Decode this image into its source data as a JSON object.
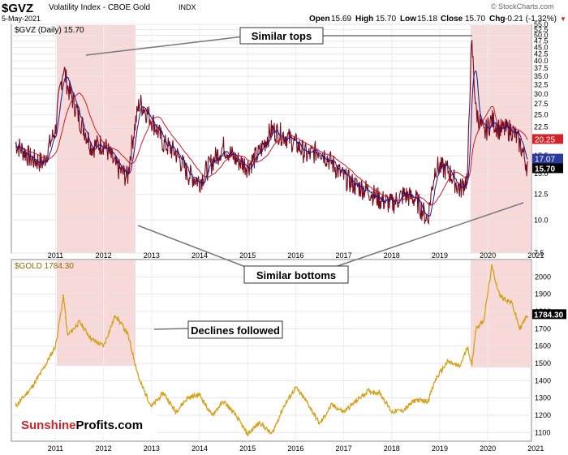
{
  "header": {
    "symbol": "$GVZ",
    "name": "Volatility Index - CBOE Gold",
    "exchange": "INDX",
    "date": "5-May-2021",
    "watermark": "© StockCharts.com",
    "open_label": "Open",
    "open": "15.69",
    "high_label": "High",
    "high": "15.70",
    "low_label": "Low",
    "low": "15.18",
    "close_label": "Close",
    "close": "15.70",
    "chg_label": "Chg",
    "chg": "-0.21 (-1.32%)",
    "chg_arrow": "▼"
  },
  "gvz_panel": {
    "legend": "$GVZ (Daily) 15.70",
    "price_badge": "15.70",
    "ma_badge_1": "20.25",
    "ma_badge_2": "17.07",
    "y_ticks": [
      "55.0",
      "52.5",
      "50.0",
      "47.5",
      "45.0",
      "42.5",
      "40.0",
      "37.5",
      "35.0",
      "32.5",
      "30.0",
      "27.5",
      "25.0",
      "22.5",
      "20.0",
      "17.5",
      "15.0",
      "12.5",
      "10.0",
      "7.5"
    ]
  },
  "gold_panel": {
    "legend": "$GOLD 1784.30",
    "price_badge": "1784.30",
    "y_ticks": [
      "2000",
      "1900",
      "1800",
      "1700",
      "1600",
      "1500",
      "1400",
      "1300",
      "1200",
      "1100"
    ]
  },
  "x_ticks": [
    "2011",
    "2012",
    "2013",
    "2014",
    "2015",
    "2016",
    "2017",
    "2018",
    "2019",
    "2020",
    "2021"
  ],
  "annotations": {
    "similar_tops": "Similar tops",
    "similar_bottoms": "Similar bottoms",
    "declines_followed": "Declines followed"
  },
  "brand": {
    "part1": "Sunshine",
    "part2": "Profits.com"
  },
  "colors": {
    "gvz_bars": "#7a0a1c",
    "ma_short": "#1a1a8c",
    "ma_long": "#cc1a2a",
    "gold": "#d4a017",
    "highlight": "#f4cccc",
    "badge_dark": "#000000",
    "badge_red": "#d0242a",
    "badge_blue": "#2a3a9c",
    "brand_red": "#d0242a"
  },
  "chart_data": [
    {
      "type": "line",
      "title": "$GVZ (Daily)",
      "xlabel": "",
      "ylabel": "",
      "y_scale": "log",
      "ylim": [
        7.5,
        55.0
      ],
      "x": [
        "2010-09",
        "2011-01",
        "2011-04",
        "2011-07",
        "2011-09",
        "2011-10",
        "2012-01",
        "2012-04",
        "2012-07",
        "2012-10",
        "2013-01",
        "2013-04",
        "2013-07",
        "2013-10",
        "2014-01",
        "2014-04",
        "2014-07",
        "2014-10",
        "2015-01",
        "2015-04",
        "2015-07",
        "2015-10",
        "2016-01",
        "2016-04",
        "2016-07",
        "2016-10",
        "2017-01",
        "2017-04",
        "2017-07",
        "2017-10",
        "2018-01",
        "2018-04",
        "2018-07",
        "2018-10",
        "2019-01",
        "2019-04",
        "2019-06",
        "2019-09",
        "2019-12",
        "2020-02",
        "2020-03",
        "2020-04",
        "2020-06",
        "2020-08",
        "2020-10",
        "2021-01",
        "2021-03",
        "2021-05"
      ],
      "series": [
        {
          "name": "$GVZ",
          "values": [
            19.5,
            17.0,
            16.5,
            22.0,
            38.0,
            32.0,
            24.0,
            19.0,
            19.5,
            16.0,
            14.5,
            28.0,
            24.0,
            19.5,
            18.0,
            15.0,
            14.0,
            16.5,
            19.0,
            17.0,
            16.0,
            18.0,
            22.0,
            21.0,
            19.5,
            17.5,
            18.5,
            16.5,
            14.5,
            13.5,
            13.0,
            12.0,
            11.5,
            12.5,
            12.0,
            10.0,
            16.0,
            15.5,
            13.0,
            14.5,
            46.0,
            26.0,
            21.0,
            24.0,
            22.0,
            22.0,
            19.5,
            15.7
          ]
        }
      ]
    },
    {
      "type": "line",
      "title": "$GOLD",
      "xlabel": "",
      "ylabel": "",
      "ylim": [
        1050,
        2100
      ],
      "x": [
        "2010-09",
        "2011-01",
        "2011-04",
        "2011-07",
        "2011-09",
        "2011-10",
        "2012-01",
        "2012-04",
        "2012-07",
        "2012-10",
        "2013-01",
        "2013-04",
        "2013-07",
        "2013-10",
        "2014-01",
        "2014-04",
        "2014-07",
        "2014-10",
        "2015-01",
        "2015-04",
        "2015-07",
        "2015-10",
        "2016-01",
        "2016-04",
        "2016-07",
        "2016-10",
        "2017-01",
        "2017-04",
        "2017-07",
        "2017-10",
        "2018-01",
        "2018-04",
        "2018-07",
        "2018-10",
        "2019-01",
        "2019-04",
        "2019-06",
        "2019-09",
        "2019-12",
        "2020-02",
        "2020-03",
        "2020-04",
        "2020-06",
        "2020-08",
        "2020-10",
        "2021-01",
        "2021-03",
        "2021-05"
      ],
      "series": [
        {
          "name": "$GOLD",
          "values": [
            1250,
            1360,
            1470,
            1600,
            1890,
            1660,
            1740,
            1640,
            1600,
            1780,
            1670,
            1400,
            1250,
            1330,
            1220,
            1300,
            1320,
            1200,
            1280,
            1200,
            1090,
            1160,
            1090,
            1250,
            1360,
            1270,
            1150,
            1260,
            1220,
            1280,
            1340,
            1330,
            1220,
            1230,
            1290,
            1280,
            1410,
            1510,
            1480,
            1600,
            1480,
            1700,
            1750,
            2060,
            1890,
            1850,
            1700,
            1784
          ]
        }
      ]
    }
  ]
}
